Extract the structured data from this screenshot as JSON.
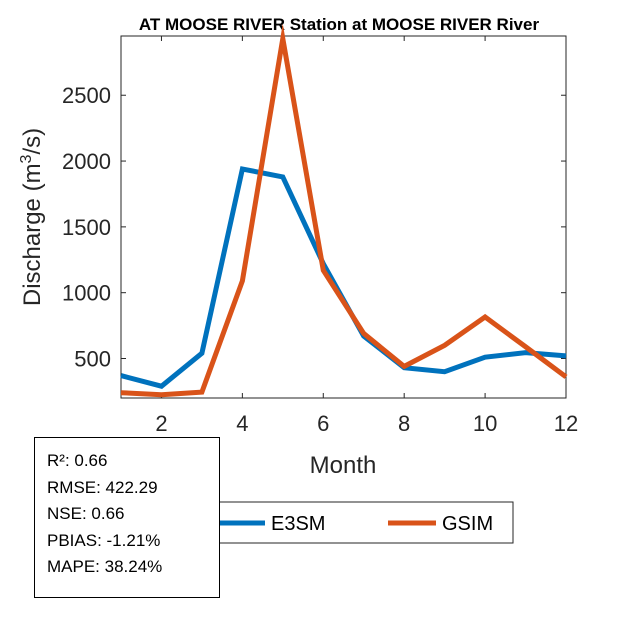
{
  "chart_data": {
    "type": "line",
    "title": "AT MOOSE RIVER  Station at  MOOSE RIVER  River",
    "xlabel": "Month",
    "ylabel_main": "Discharge (m",
    "ylabel_sup": "3",
    "ylabel_end": "/s)",
    "xlim": [
      1,
      12
    ],
    "ylim": [
      200,
      2950
    ],
    "xticks": [
      2,
      4,
      6,
      8,
      10,
      12
    ],
    "yticks": [
      500,
      1000,
      1500,
      2000,
      2500
    ],
    "x": [
      1,
      2,
      3,
      4,
      5,
      6,
      7,
      8,
      9,
      10,
      11,
      12
    ],
    "series": [
      {
        "name": "E3SM",
        "color": "#0072BD",
        "values": [
          370,
          290,
          540,
          1940,
          1880,
          1220,
          670,
          430,
          400,
          510,
          545,
          520
        ]
      },
      {
        "name": "GSIM",
        "color": "#D95319",
        "values": [
          240,
          225,
          245,
          1090,
          2930,
          1170,
          690,
          440,
          600,
          815,
          590,
          360
        ]
      }
    ],
    "legend_position": "bottom"
  },
  "stats": [
    "R²: 0.66",
    "RMSE: 422.29",
    "NSE: 0.66",
    "PBIAS: -1.21%",
    "MAPE: 38.24%"
  ]
}
